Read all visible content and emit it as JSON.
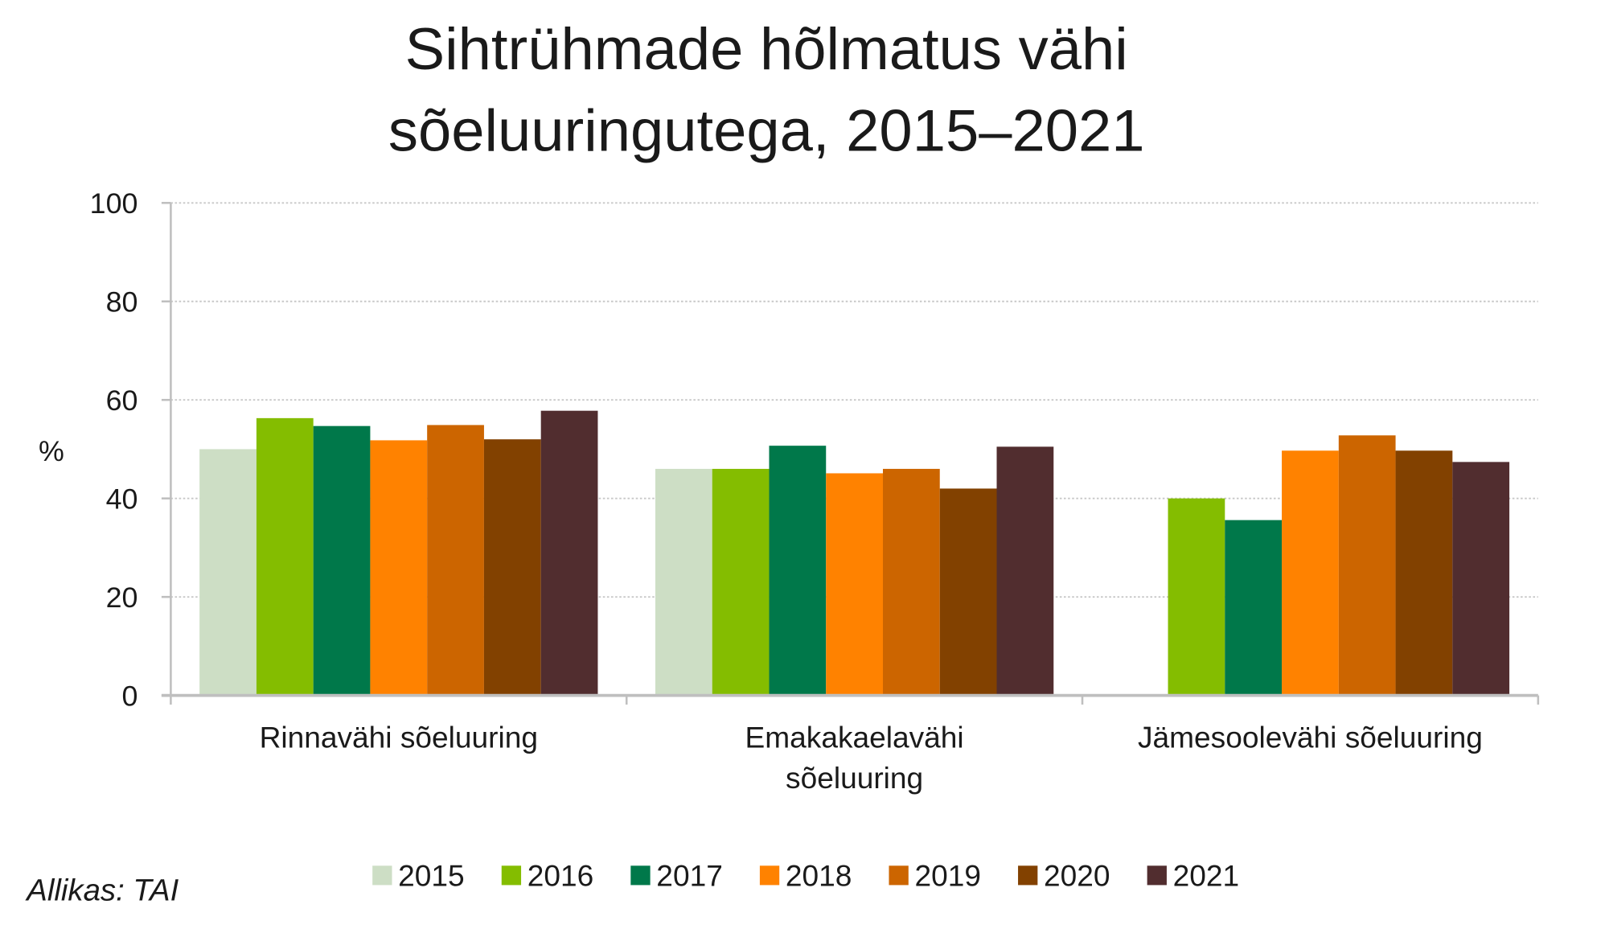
{
  "chart_data": {
    "type": "bar",
    "title_lines": [
      "Sihtrühmade hõlmatus vähi",
      "sõeluuringutega, 2015–2021"
    ],
    "ylabel": "%",
    "xlabel": "",
    "ylim": [
      0,
      100
    ],
    "yticks": [
      "0",
      "20",
      "40",
      "60",
      "80",
      "100"
    ],
    "grid": true,
    "legend_position": "bottom",
    "categories": [
      [
        "Rinnavähi sõeluuring"
      ],
      [
        "Emakakaelavähi",
        "sõeluuring"
      ],
      [
        "Jämesoolevähi sõeluuring"
      ]
    ],
    "series": [
      {
        "name": "2015",
        "color": "#cddec5",
        "values": [
          50.0,
          46.0,
          null
        ]
      },
      {
        "name": "2016",
        "color": "#84bd00",
        "values": [
          56.3,
          46.0,
          40.0
        ]
      },
      {
        "name": "2017",
        "color": "#00784a",
        "values": [
          54.7,
          50.7,
          35.6
        ]
      },
      {
        "name": "2018",
        "color": "#ff8200",
        "values": [
          51.8,
          45.1,
          49.7
        ]
      },
      {
        "name": "2019",
        "color": "#cc6500",
        "values": [
          54.9,
          46.0,
          52.8
        ]
      },
      {
        "name": "2020",
        "color": "#824100",
        "values": [
          52.0,
          42.0,
          49.7
        ]
      },
      {
        "name": "2021",
        "color": "#512d2f",
        "values": [
          57.8,
          50.5,
          47.4
        ]
      }
    ],
    "source": "Allikas: TAI"
  }
}
